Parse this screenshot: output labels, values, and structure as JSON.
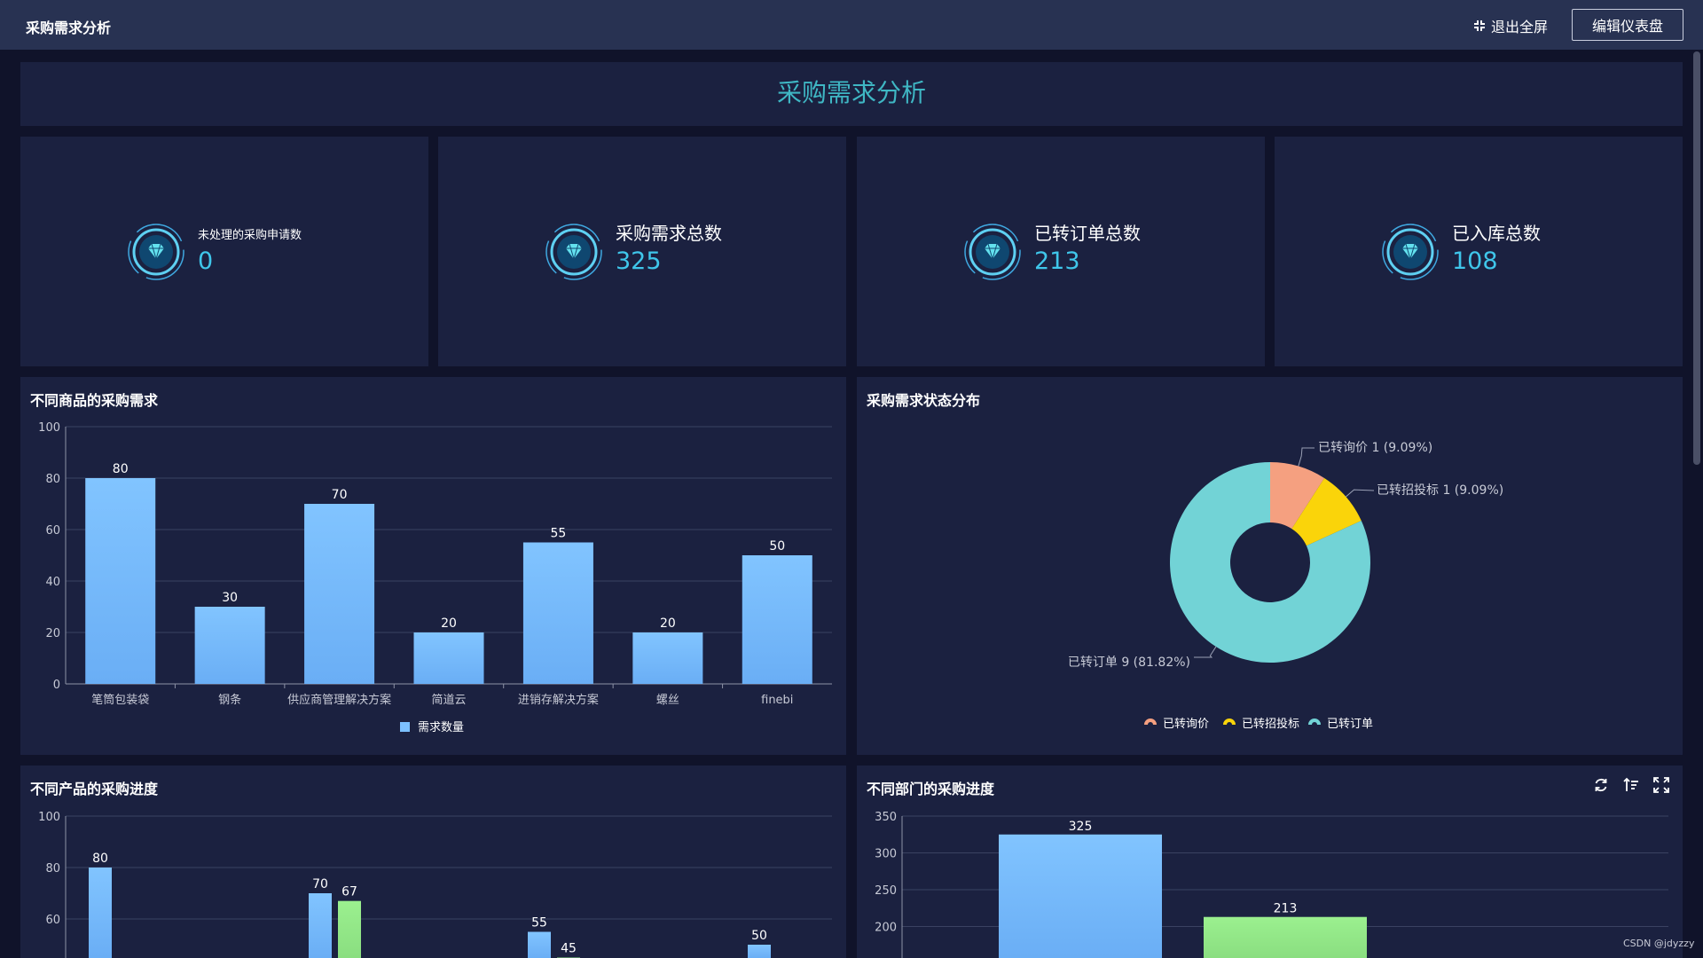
{
  "header": {
    "title": "采购需求分析",
    "exit_fullscreen": "退出全屏",
    "edit_dashboard": "编辑仪表盘"
  },
  "banner": {
    "title": "采购需求分析"
  },
  "kpis": [
    {
      "label": "未处理的采购申请数",
      "value": "0"
    },
    {
      "label": "采购需求总数",
      "value": "325"
    },
    {
      "label": "已转订单总数",
      "value": "213"
    },
    {
      "label": "已入库总数",
      "value": "108"
    }
  ],
  "panels": {
    "goods_demand": {
      "title": "不同商品的采购需求"
    },
    "status_dist": {
      "title": "采购需求状态分布"
    },
    "product_progress": {
      "title": "不同产品的采购进度"
    },
    "dept_progress": {
      "title": "不同部门的采购进度"
    }
  },
  "icons": {
    "kpi": "diamond-ring-icon",
    "exit_fullscreen": "compress-icon",
    "tools": [
      "refresh-icon",
      "sort-icon",
      "expand-icon"
    ]
  },
  "colors": {
    "bar_blue": "#7cc0ff",
    "bar_green": "#95ea8c",
    "pie_salmon": "#f5a080",
    "pie_yellow": "#fad40a",
    "pie_teal": "#72d3d6",
    "title_teal": "#3fb7c4"
  },
  "chart_data": [
    {
      "type": "bar",
      "title": "不同商品的采购需求",
      "categories": [
        "笔筒包装袋",
        "钢条",
        "供应商管理解决方案",
        "简道云",
        "进销存解决方案",
        "螺丝",
        "finebi"
      ],
      "series": [
        {
          "name": "需求数量",
          "values": [
            80,
            30,
            70,
            20,
            55,
            20,
            50
          ]
        }
      ],
      "yticks": [
        0,
        20,
        40,
        60,
        80,
        100
      ],
      "ylim": [
        0,
        100
      ],
      "legend": "bottom-center",
      "grid": true
    },
    {
      "type": "pie",
      "title": "采购需求状态分布",
      "donut": true,
      "slices": [
        {
          "name": "已转询价",
          "value": 1,
          "label": "已转询价 1 (9.09%)"
        },
        {
          "name": "已转招投标",
          "value": 1,
          "label": "已转招投标 1 (9.09%)"
        },
        {
          "name": "已转订单",
          "value": 9,
          "label": "已转订单 9 (81.82%)"
        }
      ],
      "legend": "bottom-center"
    },
    {
      "type": "bar",
      "title": "不同产品的采购进度",
      "groups": [
        {
          "values": [
            80
          ]
        },
        {
          "values": [
            70,
            67
          ]
        },
        {
          "values": [
            55,
            45
          ]
        },
        {
          "values": [
            50
          ]
        }
      ],
      "labels": [
        "80",
        "70",
        "67",
        "55",
        "45",
        "50"
      ],
      "yticks": [
        60,
        80,
        100
      ],
      "ylim": [
        0,
        100
      ],
      "grid": true
    },
    {
      "type": "bar",
      "title": "不同部门的采购进度",
      "values": [
        325,
        213
      ],
      "labels": [
        "325",
        "213"
      ],
      "yticks": [
        200,
        250,
        300,
        350
      ],
      "ylim": [
        0,
        350
      ],
      "grid": true
    }
  ],
  "watermark": "CSDN @jdyzzy"
}
